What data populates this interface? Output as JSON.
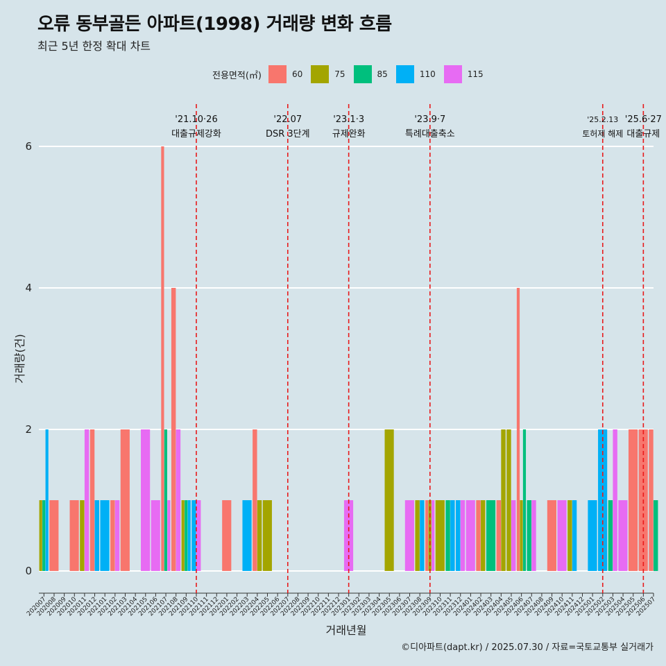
{
  "title": "오류 동부골든 아파트(1998) 거래량 변화 흐름",
  "subtitle": "최근 5년 한정 확대 차트",
  "caption": "©디아파트(dapt.kr) / 2025.07.30 / 자료=국토교통부 실거래가",
  "legend": {
    "title": "전용면적(㎡)",
    "items": [
      {
        "label": "60",
        "color": "#f8766d"
      },
      {
        "label": "75",
        "color": "#a3a500"
      },
      {
        "label": "85",
        "color": "#00bf7d"
      },
      {
        "label": "110",
        "color": "#00b0f6"
      },
      {
        "label": "115",
        "color": "#e76bf3"
      }
    ]
  },
  "chart_data": {
    "type": "bar",
    "xlabel": "거래년월",
    "ylabel": "거래량(건)",
    "ylim": [
      0,
      6
    ],
    "yticks": [
      0,
      2,
      4,
      6
    ],
    "grid": true,
    "legend_position": "top",
    "categories": [
      "202007",
      "202008",
      "202009",
      "202010",
      "202011",
      "202012",
      "202101",
      "202102",
      "202103",
      "202104",
      "202105",
      "202106",
      "202107",
      "202108",
      "202109",
      "202110",
      "202111",
      "202112",
      "202201",
      "202202",
      "202203",
      "202204",
      "202205",
      "202206",
      "202207",
      "202208",
      "202209",
      "202210",
      "202211",
      "202212",
      "202301",
      "202302",
      "202303",
      "202304",
      "202305",
      "202306",
      "202307",
      "202308",
      "202309",
      "202310",
      "202311",
      "202312",
      "202401",
      "202402",
      "202403",
      "202404",
      "202405",
      "202406",
      "202407",
      "202408",
      "202409",
      "202410",
      "202411",
      "202412",
      "202501",
      "202502",
      "202503",
      "202504",
      "202505",
      "202506",
      "202507"
    ],
    "series": [
      {
        "name": "60",
        "values": [
          0,
          1,
          0,
          1,
          0,
          2,
          0,
          1,
          2,
          0,
          0,
          0,
          6,
          4,
          0,
          0,
          0,
          0,
          1,
          0,
          0,
          2,
          0,
          0,
          0,
          0,
          0,
          0,
          0,
          0,
          0,
          0,
          0,
          0,
          0,
          0,
          0,
          0,
          1,
          0,
          0,
          0,
          0,
          1,
          0,
          1,
          0,
          4,
          0,
          0,
          1,
          0,
          0,
          0,
          0,
          0,
          0,
          0,
          2,
          2,
          2
        ]
      },
      {
        "name": "75",
        "values": [
          1,
          0,
          0,
          0,
          1,
          0,
          0,
          0,
          0,
          0,
          0,
          0,
          0,
          0,
          1,
          0,
          0,
          0,
          0,
          0,
          0,
          1,
          1,
          0,
          0,
          0,
          0,
          0,
          0,
          0,
          0,
          0,
          0,
          0,
          2,
          0,
          0,
          1,
          1,
          1,
          0,
          0,
          0,
          1,
          0,
          2,
          2,
          1,
          0,
          0,
          0,
          0,
          1,
          0,
          0,
          0,
          0,
          0,
          0,
          0,
          0
        ]
      },
      {
        "name": "85",
        "values": [
          1,
          0,
          0,
          0,
          0,
          0,
          0,
          0,
          0,
          0,
          0,
          0,
          2,
          0,
          1,
          0,
          0,
          0,
          0,
          0,
          0,
          0,
          0,
          0,
          0,
          0,
          0,
          0,
          0,
          0,
          0,
          0,
          0,
          0,
          0,
          0,
          0,
          0,
          0,
          0,
          1,
          0,
          0,
          0,
          1,
          0,
          0,
          2,
          1,
          0,
          0,
          0,
          0,
          0,
          0,
          0,
          1,
          0,
          0,
          0,
          1
        ]
      },
      {
        "name": "110",
        "values": [
          2,
          0,
          0,
          0,
          0,
          1,
          1,
          0,
          0,
          0,
          0,
          0,
          0,
          0,
          1,
          1,
          0,
          0,
          0,
          0,
          1,
          0,
          0,
          0,
          0,
          0,
          0,
          0,
          0,
          0,
          0,
          0,
          0,
          0,
          0,
          0,
          0,
          1,
          0,
          0,
          1,
          1,
          0,
          0,
          0,
          0,
          0,
          0,
          0,
          0,
          0,
          0,
          1,
          0,
          1,
          2,
          0,
          0,
          0,
          0,
          0
        ]
      },
      {
        "name": "115",
        "values": [
          0,
          0,
          0,
          0,
          2,
          0,
          0,
          1,
          0,
          0,
          2,
          1,
          1,
          2,
          0,
          1,
          0,
          0,
          0,
          0,
          0,
          0,
          0,
          0,
          0,
          0,
          0,
          0,
          0,
          0,
          1,
          0,
          0,
          0,
          0,
          0,
          1,
          0,
          1,
          0,
          0,
          1,
          1,
          0,
          0,
          0,
          1,
          0,
          1,
          0,
          0,
          1,
          0,
          0,
          0,
          0,
          2,
          1,
          0,
          0,
          0
        ]
      }
    ],
    "annotations": [
      {
        "x": "202110",
        "label_line1": "'21.10·26",
        "label_line2": "대출규제강화"
      },
      {
        "x": "202207",
        "label_line1": "'22.07",
        "label_line2": "DSR 3단계"
      },
      {
        "x": "202301",
        "label_line1": "'23.1·3",
        "label_line2": "규제완화"
      },
      {
        "x": "202309",
        "label_line1": "'23.9·7",
        "label_line2": "특례대출축소"
      },
      {
        "x": "202502",
        "label_line1": "'25.2.13",
        "label_line2": "토허제 해제"
      },
      {
        "x": "202506",
        "label_line1": "'25.6·27",
        "label_line2": "대출규제"
      }
    ]
  }
}
